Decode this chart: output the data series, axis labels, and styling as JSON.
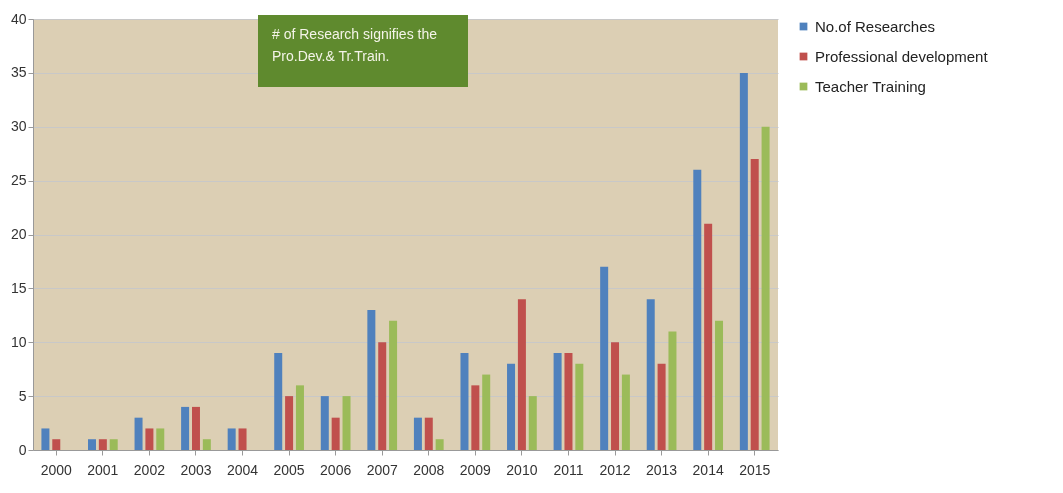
{
  "chart_data": {
    "type": "bar",
    "categories": [
      "2000",
      "2001",
      "2002",
      "2003",
      "2004",
      "2005",
      "2006",
      "2007",
      "2008",
      "2009",
      "2010",
      "2011",
      "2012",
      "2013",
      "2014",
      "2015"
    ],
    "series": [
      {
        "name": "No.of Researches",
        "color": "#4f81bd",
        "values": [
          2,
          1,
          3,
          4,
          2,
          9,
          5,
          13,
          3,
          9,
          8,
          9,
          17,
          14,
          26,
          35
        ]
      },
      {
        "name": "Professional development",
        "color": "#c0504d",
        "values": [
          1,
          1,
          2,
          4,
          2,
          5,
          3,
          10,
          3,
          6,
          14,
          9,
          10,
          8,
          21,
          27
        ]
      },
      {
        "name": "Teacher Training",
        "color": "#9bbb59",
        "values": [
          0,
          1,
          2,
          1,
          0,
          6,
          5,
          12,
          1,
          7,
          5,
          8,
          7,
          11,
          12,
          30
        ]
      }
    ],
    "ylim": [
      0,
      40
    ],
    "yticks": [
      0,
      5,
      10,
      15,
      20,
      25,
      30,
      35,
      40
    ],
    "grid": "y",
    "legend": "right",
    "annotations": [
      "# of Research  signifies the Pro.Dev.& Tr.Train."
    ]
  }
}
